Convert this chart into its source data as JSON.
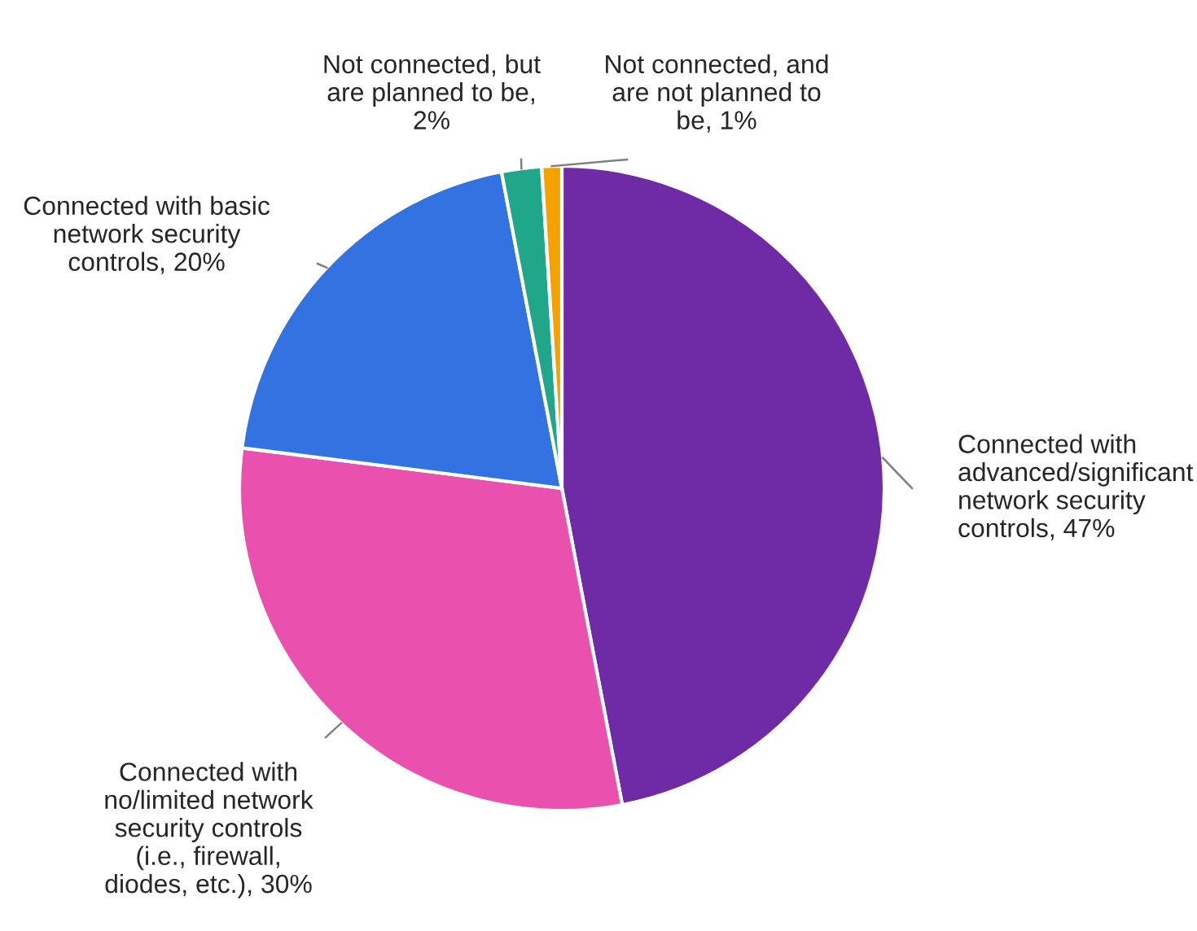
{
  "chart_data": {
    "type": "pie",
    "categories": [
      "Connected with\nadvanced/significant\nnetwork security\ncontrols, 47%",
      "Connected with\nno/limited network\nsecurity controls\n(i.e., firewall,\ndiodes, etc.), 30%",
      "Connected with basic\nnetwork security\ncontrols, 20%",
      "Not connected, but\nare planned to be,\n2%",
      "Not connected, and\nare not planned to\nbe, 1%"
    ],
    "values": [
      47,
      30,
      20,
      2,
      1
    ],
    "colors": [
      "#6f2ba6",
      "#ea50ae",
      "#3373e1",
      "#20a688",
      "#f5a200"
    ]
  }
}
